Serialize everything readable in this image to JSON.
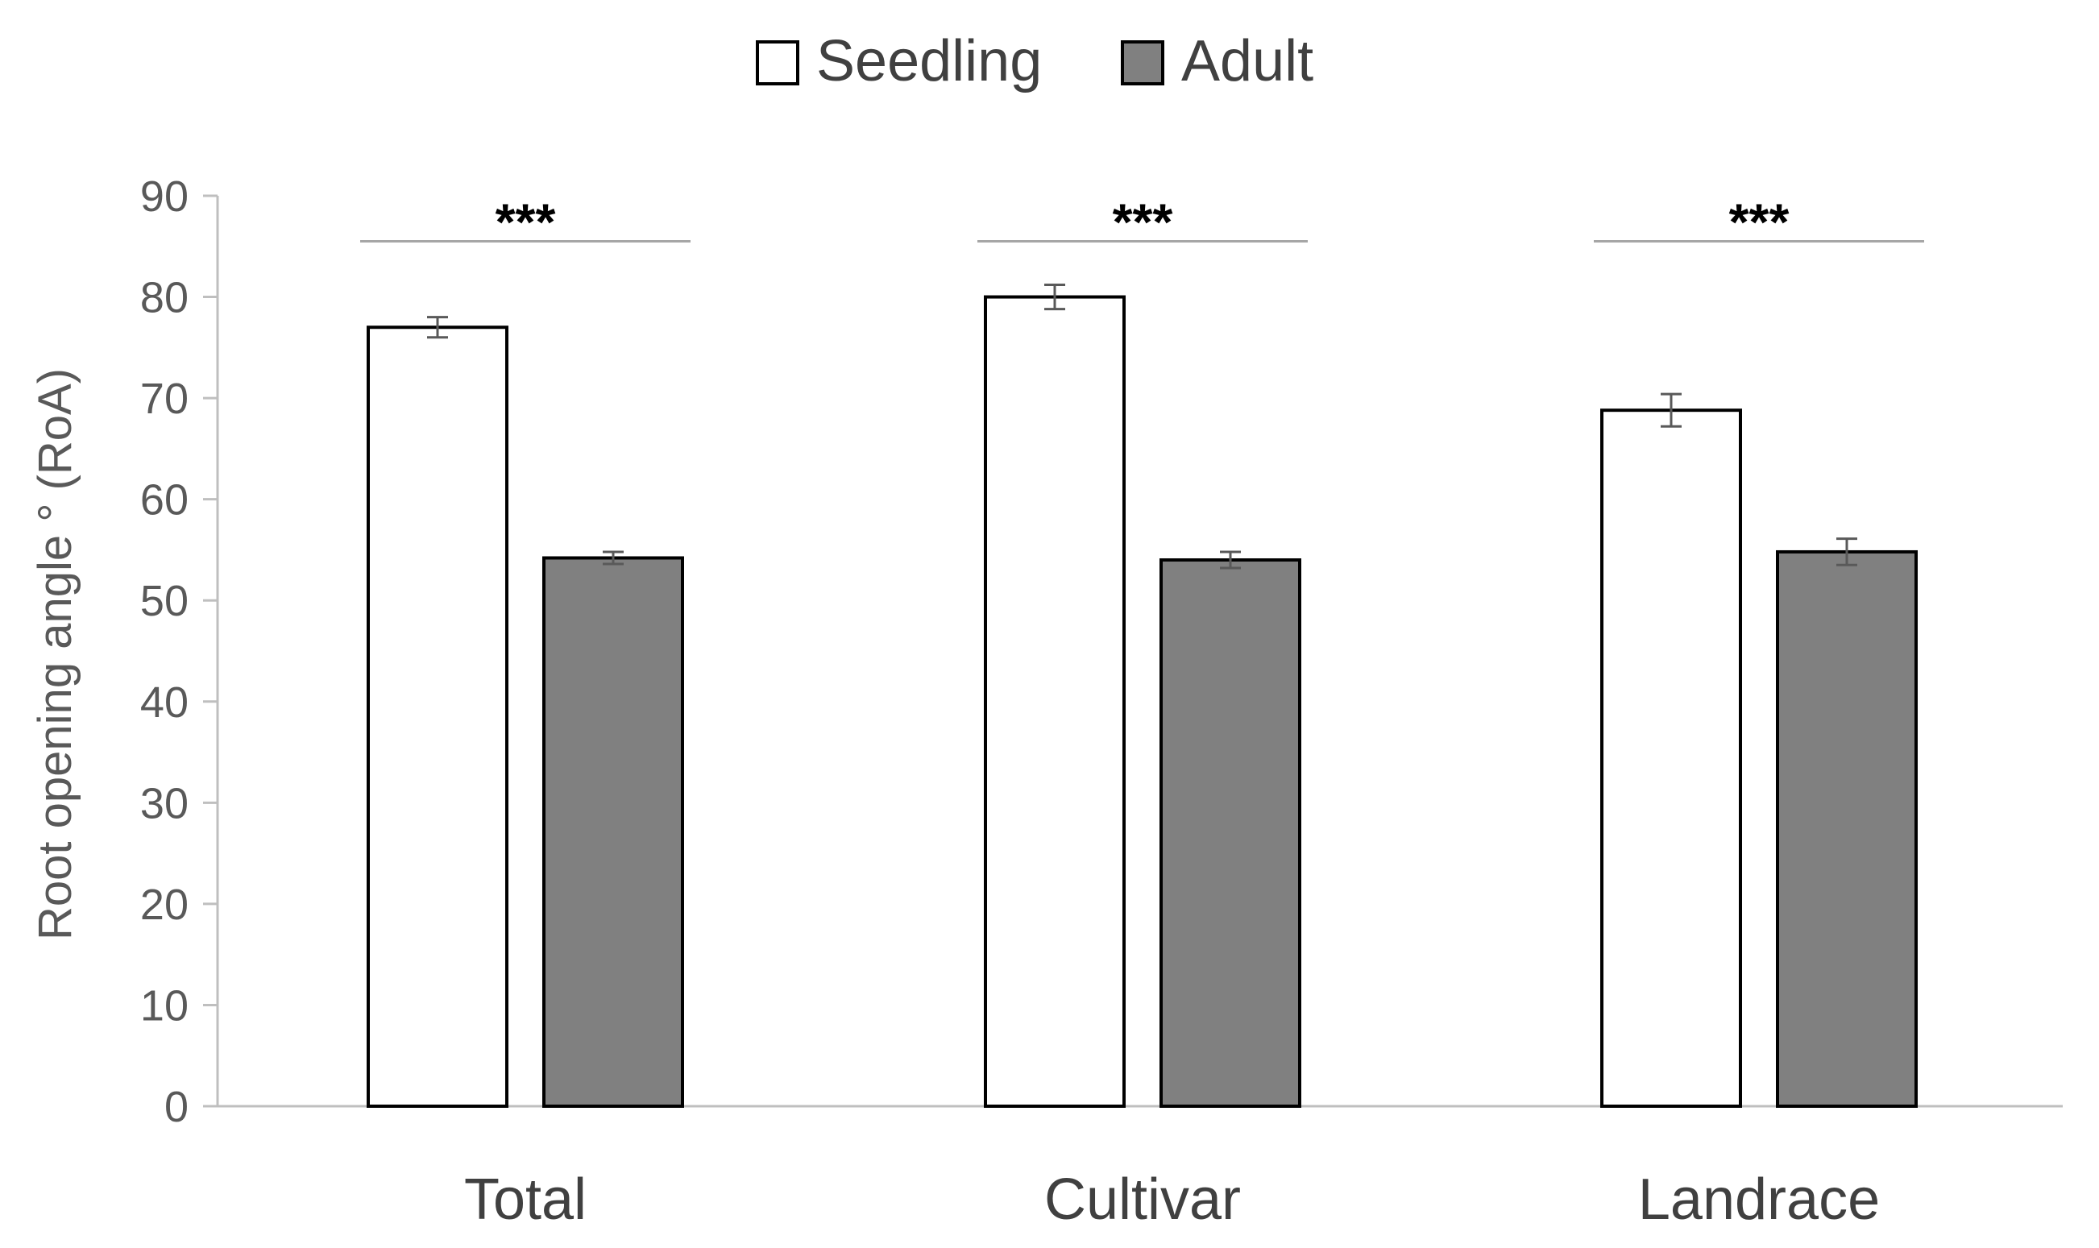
{
  "chart_data": {
    "type": "bar",
    "title": "",
    "xlabel": "",
    "ylabel": "Root opening angle ° (RoA)",
    "categories": [
      "Total",
      "Cultivar",
      "Landrace"
    ],
    "series": [
      {
        "name": "Seedling",
        "color": "#ffffff",
        "values": [
          77.0,
          80.0,
          68.8
        ],
        "errors": [
          1.0,
          1.2,
          1.6
        ]
      },
      {
        "name": "Adult",
        "color": "#808080",
        "values": [
          54.2,
          54.0,
          54.8
        ],
        "errors": [
          0.6,
          0.8,
          1.3
        ]
      }
    ],
    "ylim": [
      0,
      90
    ],
    "yticks": [
      0,
      10,
      20,
      30,
      40,
      50,
      60,
      70,
      80,
      90
    ],
    "grid": false,
    "legend_position": "top-center",
    "significance": [
      "***",
      "***",
      "***"
    ],
    "significance_level": 85.5
  }
}
